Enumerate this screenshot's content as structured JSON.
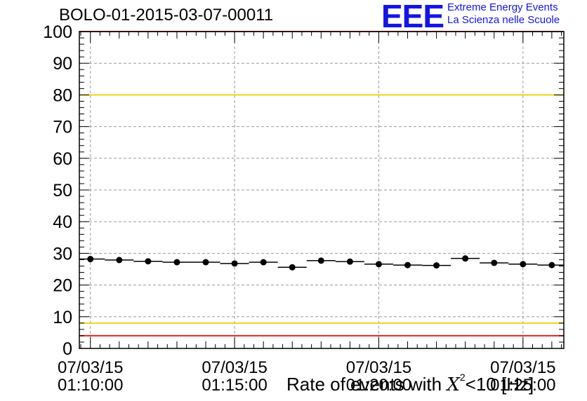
{
  "header": {
    "title": "BOLO-01-2015-03-07-00011",
    "logo": "EEE",
    "logo_line1": "Extreme Energy Events",
    "logo_line2": "La Scienza nelle Scuole"
  },
  "colors": {
    "red": "#e8231e",
    "yellow": "#f2d21e",
    "grid": "#9a9a9a",
    "marker": "#000000",
    "logo": "#1414e6"
  },
  "chart_data": {
    "type": "scatter",
    "title": "BOLO-01-2015-03-07-00011",
    "xlabel_parts": [
      "Rate of events with ",
      "X",
      "2",
      "<10 [Hz]"
    ],
    "ylim": [
      0,
      100
    ],
    "y_ticks": [
      0,
      10,
      20,
      30,
      40,
      50,
      60,
      70,
      80,
      90,
      100
    ],
    "x_tick_labels": [
      [
        "07/03/15",
        "01:10:00"
      ],
      [
        "07/03/15",
        "01:15:00"
      ],
      [
        "07/03/15",
        "01:20:00"
      ],
      [
        "07/03/15",
        "01:25:00"
      ]
    ],
    "x_start": "2015-03-07 01:09:37",
    "x_end": "2015-03-07 01:26:25",
    "grid": true,
    "reference_lines": [
      {
        "value": 100,
        "color": "red"
      },
      {
        "value": 4,
        "color": "red"
      },
      {
        "value": 80,
        "color": "yellow"
      },
      {
        "value": 8,
        "color": "yellow"
      }
    ],
    "points": [
      {
        "t": "01:10:00",
        "y": 28.2
      },
      {
        "t": "01:11:00",
        "y": 27.9
      },
      {
        "t": "01:12:00",
        "y": 27.5
      },
      {
        "t": "01:13:00",
        "y": 27.2
      },
      {
        "t": "01:14:00",
        "y": 27.2
      },
      {
        "t": "01:15:00",
        "y": 26.8
      },
      {
        "t": "01:16:00",
        "y": 27.2
      },
      {
        "t": "01:17:00",
        "y": 25.6
      },
      {
        "t": "01:18:00",
        "y": 27.7
      },
      {
        "t": "01:19:00",
        "y": 27.4
      },
      {
        "t": "01:20:00",
        "y": 26.6
      },
      {
        "t": "01:21:00",
        "y": 26.3
      },
      {
        "t": "01:22:00",
        "y": 26.2
      },
      {
        "t": "01:23:00",
        "y": 28.4
      },
      {
        "t": "01:24:00",
        "y": 27.0
      },
      {
        "t": "01:25:00",
        "y": 26.6
      },
      {
        "t": "01:26:00",
        "y": 26.3
      }
    ]
  }
}
